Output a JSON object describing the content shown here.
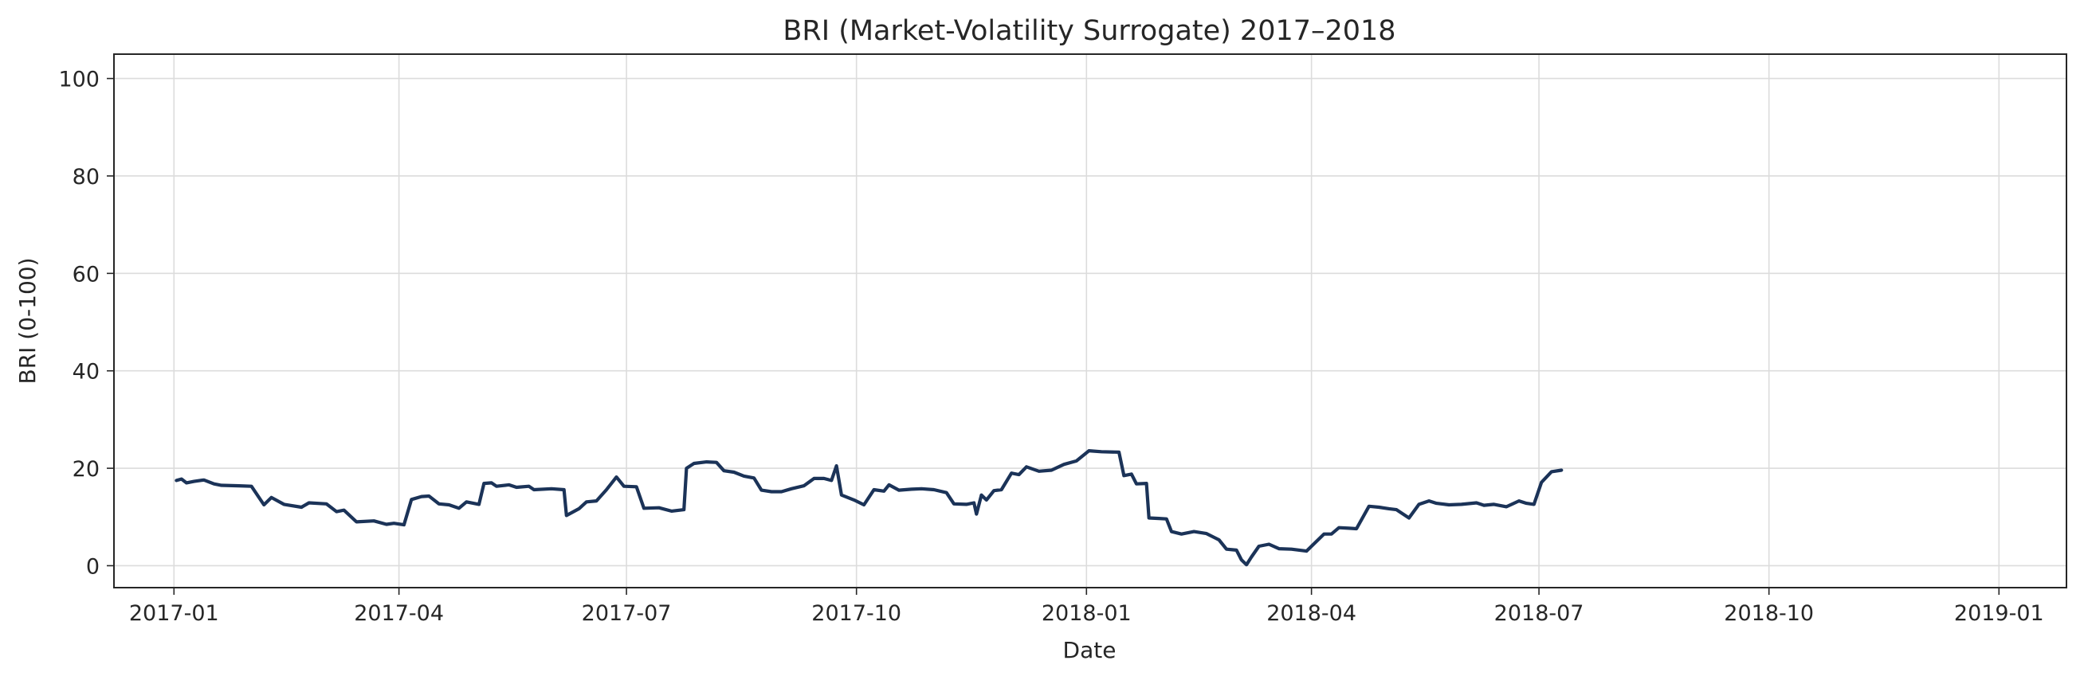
{
  "chart_data": {
    "type": "line",
    "title": "BRI (Market-Volatility Surrogate) 2017–2018",
    "xlabel": "Date",
    "ylabel": "BRI (0-100)",
    "xlim": [
      "2016-12-08",
      "2019-01-28"
    ],
    "ylim": [
      -4.5,
      105
    ],
    "x_ticks": [
      {
        "date": "2017-01-01",
        "label": "2017-01"
      },
      {
        "date": "2017-04-01",
        "label": "2017-04"
      },
      {
        "date": "2017-07-01",
        "label": "2017-07"
      },
      {
        "date": "2017-10-01",
        "label": "2017-10"
      },
      {
        "date": "2018-01-01",
        "label": "2018-01"
      },
      {
        "date": "2018-04-01",
        "label": "2018-04"
      },
      {
        "date": "2018-07-01",
        "label": "2018-07"
      },
      {
        "date": "2018-10-01",
        "label": "2018-10"
      },
      {
        "date": "2019-01-01",
        "label": "2019-01"
      }
    ],
    "y_ticks": [
      0,
      20,
      40,
      60,
      80,
      100
    ],
    "grid": true,
    "line_color": "#1b3358",
    "series": [
      {
        "points": [
          [
            "2017-01-02",
            17.5
          ],
          [
            "2017-01-04",
            17.8
          ],
          [
            "2017-01-06",
            17.0
          ],
          [
            "2017-01-09",
            17.3
          ],
          [
            "2017-01-13",
            17.6
          ],
          [
            "2017-01-17",
            16.8
          ],
          [
            "2017-01-20",
            16.5
          ],
          [
            "2017-01-27",
            16.4
          ],
          [
            "2017-02-01",
            16.3
          ],
          [
            "2017-02-06",
            12.5
          ],
          [
            "2017-02-09",
            14.0
          ],
          [
            "2017-02-14",
            12.6
          ],
          [
            "2017-02-21",
            12.0
          ],
          [
            "2017-02-24",
            12.9
          ],
          [
            "2017-03-03",
            12.7
          ],
          [
            "2017-03-07",
            11.1
          ],
          [
            "2017-03-10",
            11.4
          ],
          [
            "2017-03-15",
            9.0
          ],
          [
            "2017-03-22",
            9.2
          ],
          [
            "2017-03-27",
            8.5
          ],
          [
            "2017-03-30",
            8.7
          ],
          [
            "2017-04-03",
            8.4
          ],
          [
            "2017-04-06",
            13.6
          ],
          [
            "2017-04-10",
            14.2
          ],
          [
            "2017-04-13",
            14.3
          ],
          [
            "2017-04-17",
            12.7
          ],
          [
            "2017-04-21",
            12.5
          ],
          [
            "2017-04-25",
            11.8
          ],
          [
            "2017-04-28",
            13.1
          ],
          [
            "2017-05-03",
            12.6
          ],
          [
            "2017-05-05",
            16.9
          ],
          [
            "2017-05-08",
            17.0
          ],
          [
            "2017-05-10",
            16.3
          ],
          [
            "2017-05-15",
            16.6
          ],
          [
            "2017-05-18",
            16.1
          ],
          [
            "2017-05-23",
            16.3
          ],
          [
            "2017-05-25",
            15.6
          ],
          [
            "2017-06-01",
            15.8
          ],
          [
            "2017-06-06",
            15.6
          ],
          [
            "2017-06-07",
            10.3
          ],
          [
            "2017-06-12",
            11.7
          ],
          [
            "2017-06-15",
            13.1
          ],
          [
            "2017-06-19",
            13.3
          ],
          [
            "2017-06-23",
            15.6
          ],
          [
            "2017-06-27",
            18.2
          ],
          [
            "2017-06-30",
            16.3
          ],
          [
            "2017-07-05",
            16.2
          ],
          [
            "2017-07-08",
            11.8
          ],
          [
            "2017-07-14",
            11.9
          ],
          [
            "2017-07-19",
            11.2
          ],
          [
            "2017-07-24",
            11.5
          ],
          [
            "2017-07-25",
            20.0
          ],
          [
            "2017-07-28",
            21.0
          ],
          [
            "2017-08-02",
            21.3
          ],
          [
            "2017-08-06",
            21.2
          ],
          [
            "2017-08-09",
            19.5
          ],
          [
            "2017-08-13",
            19.2
          ],
          [
            "2017-08-17",
            18.4
          ],
          [
            "2017-08-21",
            18.0
          ],
          [
            "2017-08-24",
            15.5
          ],
          [
            "2017-08-28",
            15.2
          ],
          [
            "2017-09-01",
            15.2
          ],
          [
            "2017-09-05",
            15.8
          ],
          [
            "2017-09-10",
            16.4
          ],
          [
            "2017-09-14",
            17.9
          ],
          [
            "2017-09-18",
            17.9
          ],
          [
            "2017-09-21",
            17.5
          ],
          [
            "2017-09-23",
            20.5
          ],
          [
            "2017-09-25",
            14.5
          ],
          [
            "2017-09-30",
            13.5
          ],
          [
            "2017-10-04",
            12.5
          ],
          [
            "2017-10-08",
            15.6
          ],
          [
            "2017-10-12",
            15.3
          ],
          [
            "2017-10-14",
            16.6
          ],
          [
            "2017-10-18",
            15.5
          ],
          [
            "2017-10-23",
            15.7
          ],
          [
            "2017-10-27",
            15.8
          ],
          [
            "2017-11-01",
            15.6
          ],
          [
            "2017-11-06",
            15.0
          ],
          [
            "2017-11-09",
            12.7
          ],
          [
            "2017-11-14",
            12.6
          ],
          [
            "2017-11-17",
            12.9
          ],
          [
            "2017-11-18",
            10.6
          ],
          [
            "2017-11-20",
            14.5
          ],
          [
            "2017-11-22",
            13.5
          ],
          [
            "2017-11-25",
            15.4
          ],
          [
            "2017-11-28",
            15.6
          ],
          [
            "2017-12-02",
            19.0
          ],
          [
            "2017-12-05",
            18.7
          ],
          [
            "2017-12-08",
            20.3
          ],
          [
            "2017-12-13",
            19.4
          ],
          [
            "2017-12-18",
            19.6
          ],
          [
            "2017-12-23",
            20.8
          ],
          [
            "2017-12-28",
            21.5
          ],
          [
            "2018-01-02",
            23.6
          ],
          [
            "2018-01-07",
            23.4
          ],
          [
            "2018-01-14",
            23.3
          ],
          [
            "2018-01-16",
            18.5
          ],
          [
            "2018-01-19",
            18.8
          ],
          [
            "2018-01-21",
            16.8
          ],
          [
            "2018-01-25",
            16.9
          ],
          [
            "2018-01-26",
            9.8
          ],
          [
            "2018-01-30",
            9.7
          ],
          [
            "2018-02-02",
            9.6
          ],
          [
            "2018-02-04",
            7.0
          ],
          [
            "2018-02-08",
            6.5
          ],
          [
            "2018-02-13",
            7.0
          ],
          [
            "2018-02-18",
            6.6
          ],
          [
            "2018-02-23",
            5.3
          ],
          [
            "2018-02-26",
            3.4
          ],
          [
            "2018-03-02",
            3.2
          ],
          [
            "2018-03-04",
            1.2
          ],
          [
            "2018-03-06",
            0.2
          ],
          [
            "2018-03-08",
            1.8
          ],
          [
            "2018-03-11",
            4.0
          ],
          [
            "2018-03-15",
            4.4
          ],
          [
            "2018-03-19",
            3.5
          ],
          [
            "2018-03-24",
            3.4
          ],
          [
            "2018-03-30",
            3.0
          ],
          [
            "2018-04-06",
            6.5
          ],
          [
            "2018-04-09",
            6.5
          ],
          [
            "2018-04-12",
            7.8
          ],
          [
            "2018-04-16",
            7.7
          ],
          [
            "2018-04-19",
            7.6
          ],
          [
            "2018-04-24",
            12.2
          ],
          [
            "2018-04-28",
            12.0
          ],
          [
            "2018-05-02",
            11.7
          ],
          [
            "2018-05-05",
            11.5
          ],
          [
            "2018-05-10",
            9.8
          ],
          [
            "2018-05-14",
            12.6
          ],
          [
            "2018-05-18",
            13.3
          ],
          [
            "2018-05-21",
            12.8
          ],
          [
            "2018-05-26",
            12.5
          ],
          [
            "2018-05-31",
            12.6
          ],
          [
            "2018-06-06",
            12.9
          ],
          [
            "2018-06-09",
            12.4
          ],
          [
            "2018-06-13",
            12.6
          ],
          [
            "2018-06-18",
            12.1
          ],
          [
            "2018-06-23",
            13.3
          ],
          [
            "2018-06-26",
            12.8
          ],
          [
            "2018-06-29",
            12.6
          ],
          [
            "2018-07-02",
            17.1
          ],
          [
            "2018-07-06",
            19.3
          ],
          [
            "2018-07-10",
            19.6
          ]
        ]
      }
    ]
  }
}
